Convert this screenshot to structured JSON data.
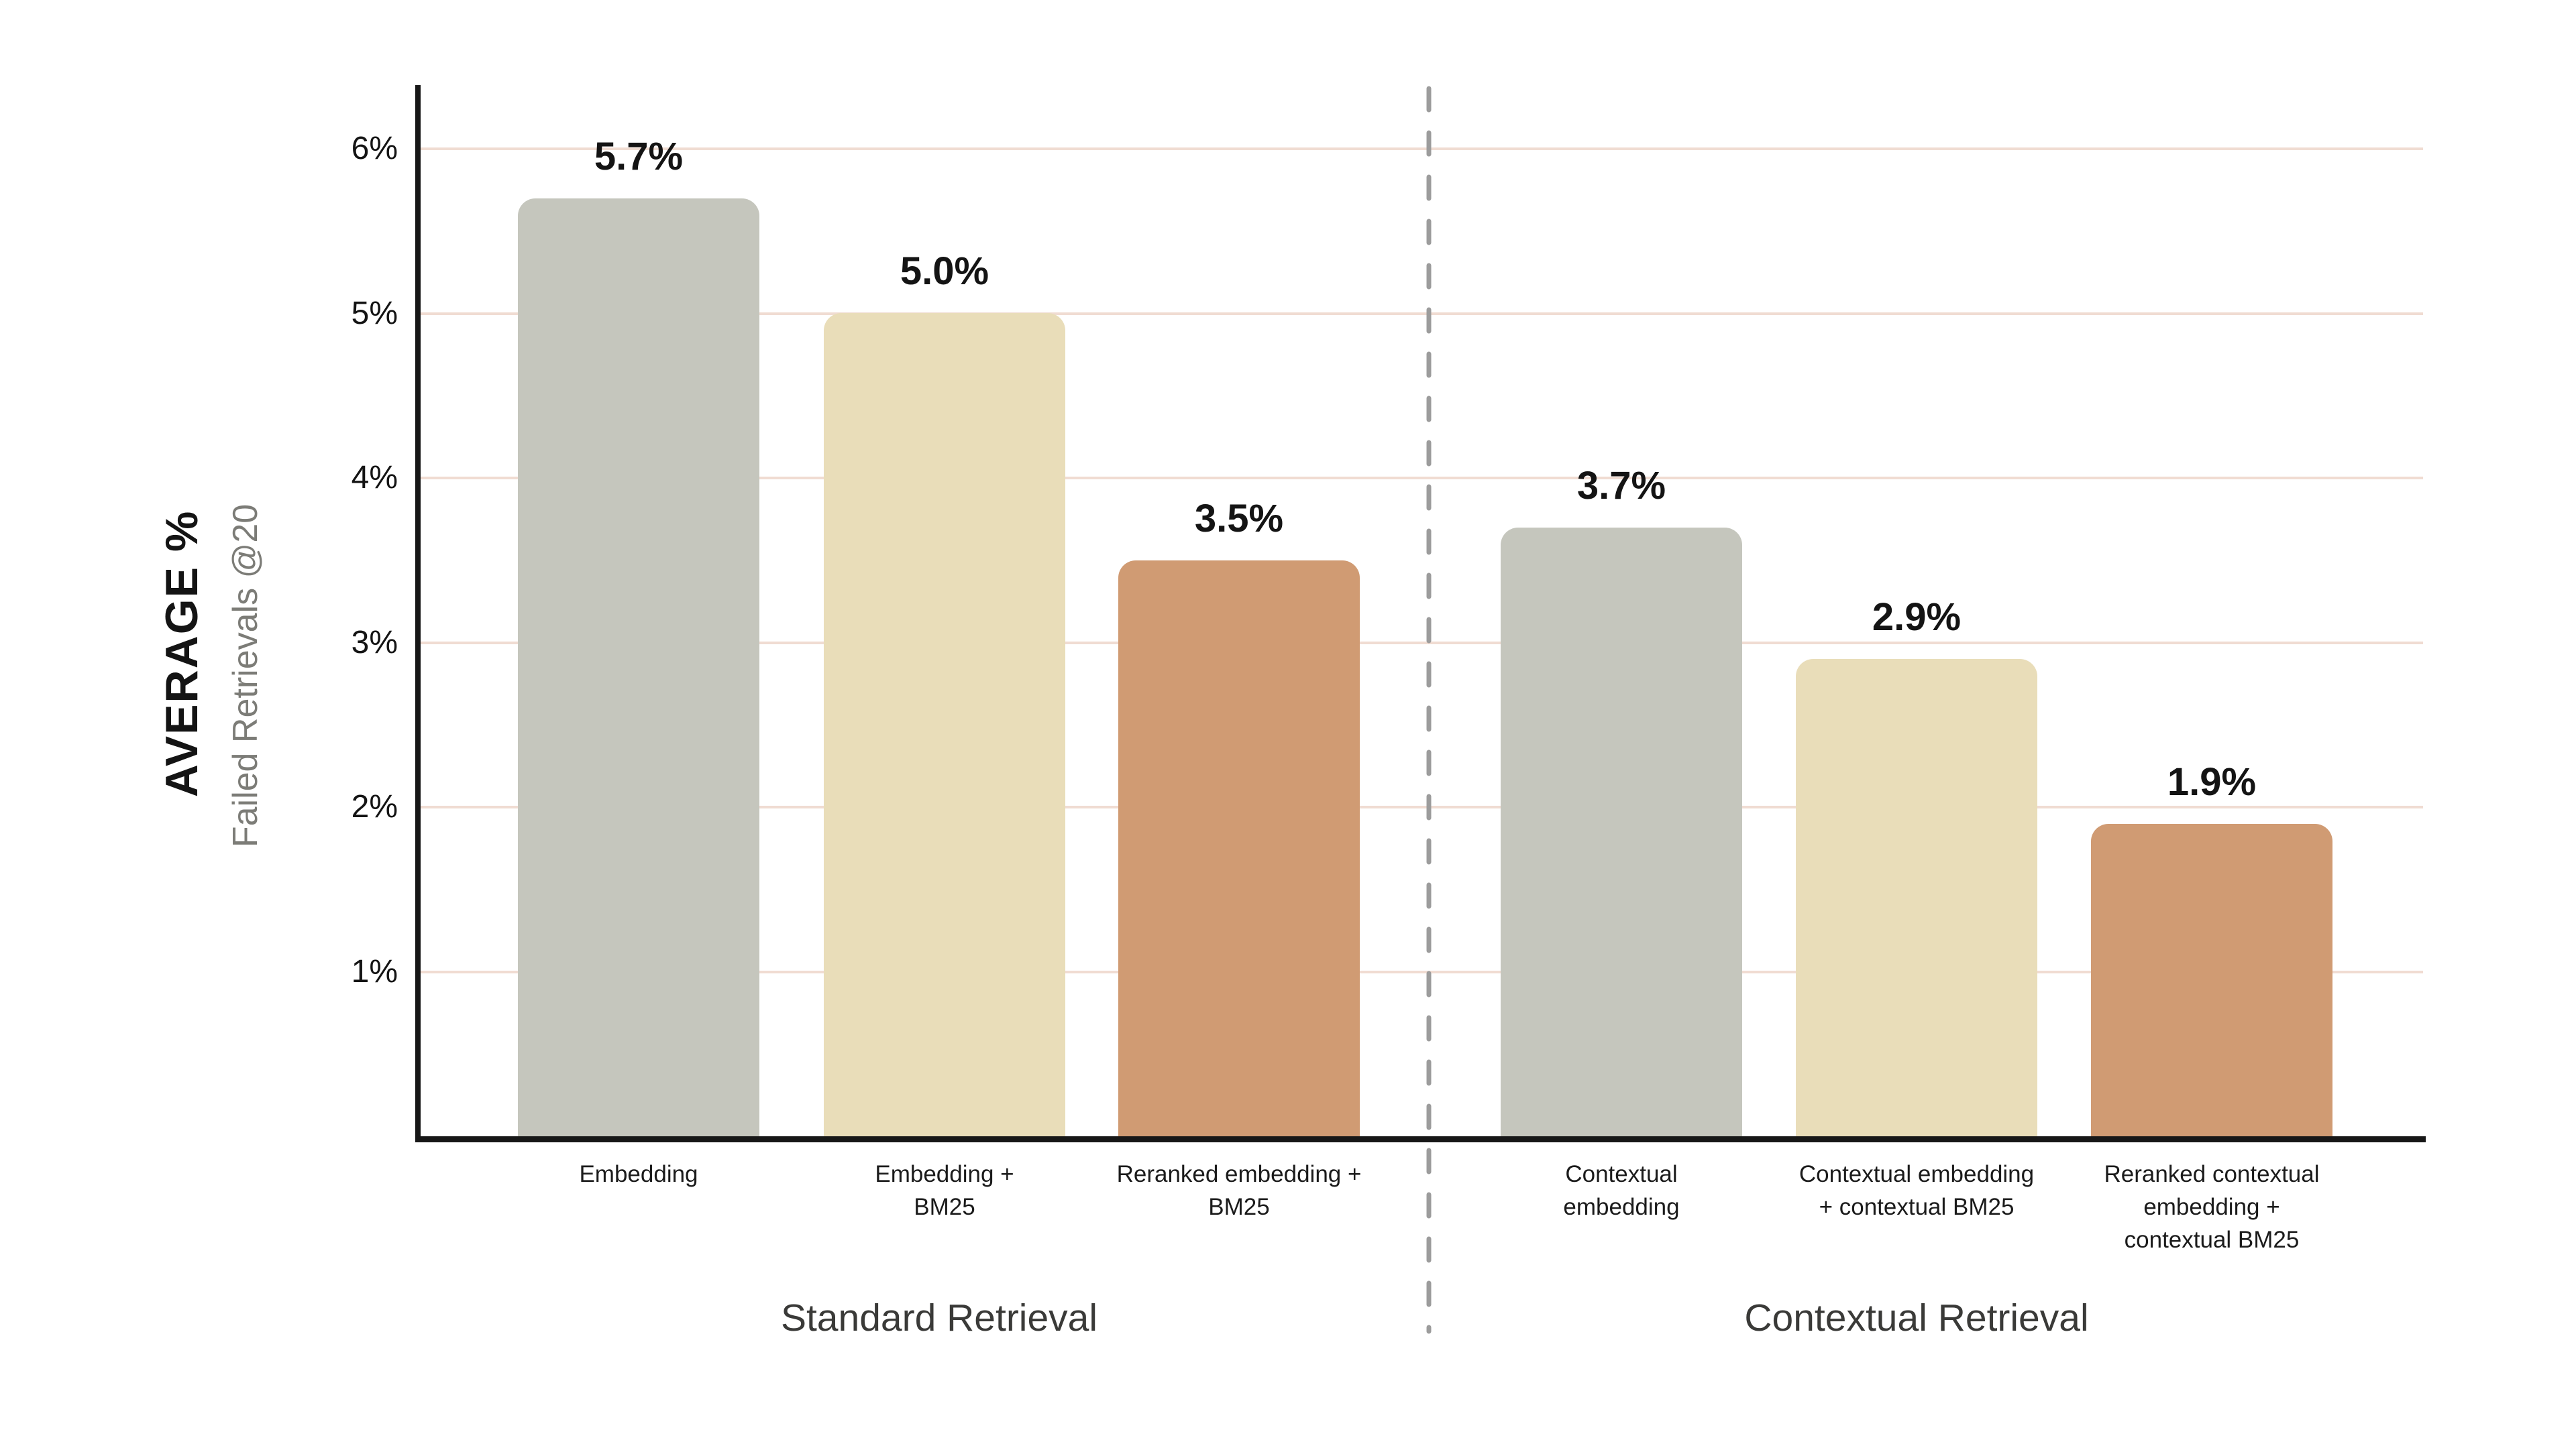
{
  "chart_data": {
    "type": "bar",
    "ylabel_main": "AVERAGE %",
    "ylabel_sub": "Failed Retrievals @20",
    "yticks": [
      "1%",
      "2%",
      "3%",
      "4%",
      "5%",
      "6%"
    ],
    "ytick_values": [
      1,
      2,
      3,
      4,
      5,
      6
    ],
    "ylim": [
      0,
      6.4
    ],
    "grid": "horizontal",
    "legend": "none",
    "bars": [
      {
        "category": "Embedding",
        "value": 5.7,
        "display": "5.7%",
        "color_key": "gray"
      },
      {
        "category": "Embedding +\nBM25",
        "value": 5.0,
        "display": "5.0%",
        "color_key": "cream"
      },
      {
        "category": "Reranked embedding +\nBM25",
        "value": 3.5,
        "display": "3.5%",
        "color_key": "copper"
      },
      {
        "category": "Contextual\nembedding",
        "value": 3.7,
        "display": "3.7%",
        "color_key": "gray"
      },
      {
        "category": "Contextual embedding\n+ contextual BM25",
        "value": 2.9,
        "display": "2.9%",
        "color_key": "cream"
      },
      {
        "category": "Reranked contextual\nembedding +\ncontextual BM25",
        "value": 1.9,
        "display": "1.9%",
        "color_key": "copper"
      }
    ],
    "groups": [
      {
        "label": "Standard Retrieval",
        "bar_indexes": [
          0,
          1,
          2
        ]
      },
      {
        "label": "Contextual Retrieval",
        "bar_indexes": [
          3,
          4,
          5
        ]
      }
    ],
    "divider": {
      "style": "dashed",
      "color": "#9c9c9c"
    },
    "colors": {
      "bar_gray": "#c5c6bd",
      "bar_cream": "#e9ddb9",
      "bar_copper": "#d09b73",
      "gridline": "#f0dcd2",
      "axis": "#171717",
      "tick_label": "#141414",
      "value_label": "#141414",
      "category_label": "#1b1b1b",
      "group_label": "#3a3a38",
      "ylabel_main_color": "#141414",
      "ylabel_sub_color": "#7c7c77",
      "background": "#ffffff"
    }
  }
}
